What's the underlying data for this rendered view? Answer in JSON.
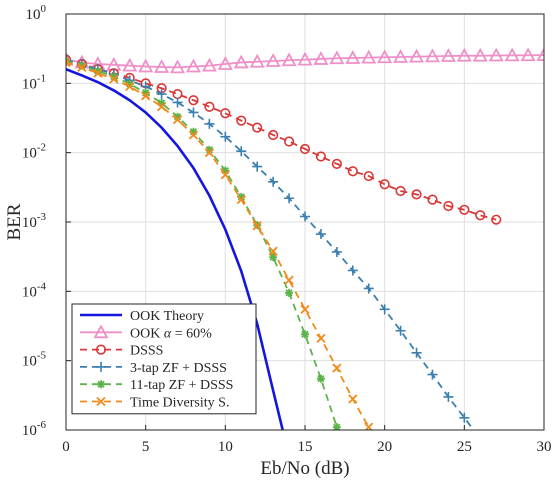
{
  "chart_data": {
    "type": "line",
    "title": "",
    "xlabel": "Eb/No (dB)",
    "ylabel": "BER",
    "xlim": [
      0,
      30
    ],
    "ylim": [
      1e-06,
      1
    ],
    "yscale": "log",
    "grid": true,
    "legend_position": "bottom-left",
    "xticks": [
      "0",
      "5",
      "10",
      "15",
      "20",
      "25",
      "30"
    ],
    "yticks": [
      {
        "base": "10",
        "exp": "-6"
      },
      {
        "base": "10",
        "exp": "-5"
      },
      {
        "base": "10",
        "exp": "-4"
      },
      {
        "base": "10",
        "exp": "-3"
      },
      {
        "base": "10",
        "exp": "-2"
      },
      {
        "base": "10",
        "exp": "-1"
      },
      {
        "base": "10",
        "exp": "0"
      }
    ],
    "series": [
      {
        "name": "OOK Theory",
        "color": "#1515e0",
        "line": "solid",
        "marker": "none",
        "x": [
          0,
          1,
          2,
          3,
          4,
          5,
          6,
          7,
          8,
          9,
          10,
          11,
          12,
          13,
          13.6
        ],
        "y": [
          0.16,
          0.13,
          0.104,
          0.079,
          0.057,
          0.038,
          0.023,
          0.0125,
          0.006,
          0.0024,
          0.00078,
          0.000195,
          3.4e-05,
          3.7e-06,
          1e-06
        ]
      },
      {
        "name": "OOK α = 60%",
        "label_prefix": "OOK",
        "label_greek": "α",
        "label_suffix": " = 60%",
        "color": "#ef8fc8",
        "line": "solid",
        "marker": "triangle",
        "x": [
          0,
          1,
          2,
          3,
          4,
          5,
          6,
          7,
          8,
          9,
          10,
          11,
          12,
          13,
          14,
          15,
          16,
          17,
          18,
          19,
          20,
          21,
          22,
          23,
          24,
          25,
          26,
          27,
          28,
          29,
          30
        ],
        "y": [
          0.22,
          0.2,
          0.19,
          0.185,
          0.18,
          0.175,
          0.172,
          0.17,
          0.175,
          0.18,
          0.19,
          0.2,
          0.205,
          0.21,
          0.215,
          0.22,
          0.225,
          0.23,
          0.232,
          0.235,
          0.238,
          0.24,
          0.243,
          0.245,
          0.248,
          0.25,
          0.25,
          0.252,
          0.253,
          0.254,
          0.255
        ]
      },
      {
        "name": "DSSS",
        "color": "#d83838",
        "line": "dashed",
        "marker": "circle",
        "x": [
          0,
          1,
          2,
          3,
          4,
          5,
          6,
          7,
          8,
          9,
          10,
          11,
          12,
          13,
          14,
          15,
          16,
          17,
          18,
          19,
          20,
          21,
          22,
          23,
          24,
          25,
          26,
          27
        ],
        "y": [
          0.22,
          0.19,
          0.16,
          0.14,
          0.12,
          0.1,
          0.085,
          0.07,
          0.057,
          0.046,
          0.037,
          0.029,
          0.023,
          0.018,
          0.0145,
          0.0113,
          0.0088,
          0.0069,
          0.0054,
          0.0046,
          0.0035,
          0.0028,
          0.0025,
          0.0021,
          0.0017,
          0.0015,
          0.00125,
          0.00108
        ]
      },
      {
        "name": "3-tap ZF + DSSS",
        "color": "#3a7fb0",
        "line": "dashed",
        "marker": "plus",
        "x": [
          0,
          1,
          2,
          3,
          4,
          5,
          6,
          7,
          8,
          9,
          10,
          11,
          12,
          13,
          14,
          15,
          16,
          17,
          18,
          19,
          20,
          21,
          22,
          23,
          24,
          25,
          26
        ],
        "y": [
          0.22,
          0.19,
          0.16,
          0.135,
          0.11,
          0.09,
          0.07,
          0.053,
          0.038,
          0.026,
          0.017,
          0.0105,
          0.0063,
          0.0038,
          0.0022,
          0.0012,
          0.00067,
          0.00037,
          0.0002,
          0.00011,
          5.5e-05,
          2.7e-05,
          1.3e-05,
          6.3e-06,
          3e-06,
          1.5e-06,
          7.5e-07
        ]
      },
      {
        "name": "11-tap ZF + DSSS",
        "color": "#5bb34a",
        "line": "dashed",
        "marker": "asterisk",
        "x": [
          0,
          1,
          2,
          3,
          4,
          5,
          6,
          7,
          8,
          9,
          10,
          11,
          12,
          13,
          14,
          15,
          16,
          17
        ],
        "y": [
          0.21,
          0.18,
          0.15,
          0.125,
          0.098,
          0.073,
          0.052,
          0.033,
          0.02,
          0.011,
          0.0055,
          0.0023,
          0.0009,
          0.00031,
          9.5e-05,
          2.4e-05,
          5.5e-06,
          1.1e-06
        ]
      },
      {
        "name": "Time Diversity S.",
        "color": "#f08a1c",
        "line": "dashed",
        "marker": "x",
        "x": [
          0,
          1,
          2,
          3,
          4,
          5,
          6,
          7,
          8,
          9,
          10,
          11,
          12,
          13,
          14,
          15,
          16,
          17,
          18,
          19,
          19.7
        ],
        "y": [
          0.2,
          0.17,
          0.14,
          0.115,
          0.09,
          0.066,
          0.046,
          0.03,
          0.018,
          0.01,
          0.0048,
          0.0021,
          0.00088,
          0.00038,
          0.000145,
          5.5e-05,
          2.1e-05,
          7.8e-06,
          2.8e-06,
          1.1e-06,
          6e-07
        ]
      }
    ]
  }
}
